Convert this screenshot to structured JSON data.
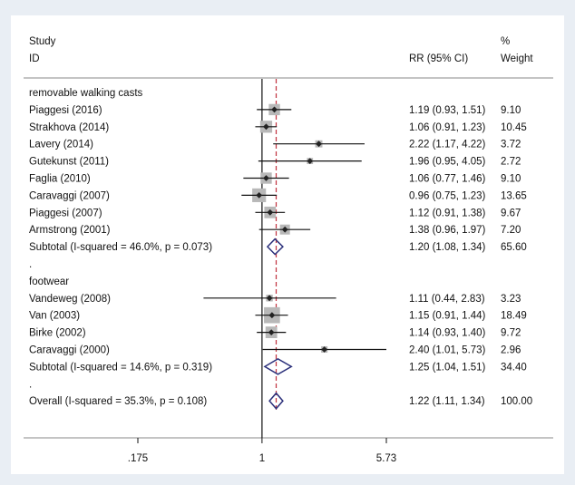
{
  "chart_data": {
    "type": "forest",
    "header": {
      "study_line1": "Study",
      "study_line2": "ID",
      "rr_label": "RR (95% CI)",
      "weight_line1": "%",
      "weight_line2": "Weight"
    },
    "axis": {
      "scale": "log",
      "ticks": [
        {
          "value": 0.175,
          "label": ".175"
        },
        {
          "value": 1,
          "label": "1"
        },
        {
          "value": 5.73,
          "label": "5.73"
        }
      ],
      "xlim": [
        0.175,
        5.73
      ],
      "null_line": 1,
      "overall_line": 1.22
    },
    "rows": [
      {
        "kind": "group",
        "label": "removable walking casts"
      },
      {
        "kind": "study",
        "label": "Piaggesi (2016)",
        "rr": 1.19,
        "lo": 0.93,
        "hi": 1.51,
        "ci_text": "1.19 (0.93, 1.51)",
        "weight": 9.1,
        "weight_text": "9.10"
      },
      {
        "kind": "study",
        "label": "Strakhova (2014)",
        "rr": 1.06,
        "lo": 0.91,
        "hi": 1.23,
        "ci_text": "1.06 (0.91, 1.23)",
        "weight": 10.45,
        "weight_text": "10.45"
      },
      {
        "kind": "study",
        "label": "Lavery (2014)",
        "rr": 2.22,
        "lo": 1.17,
        "hi": 4.22,
        "ci_text": "2.22 (1.17, 4.22)",
        "weight": 3.72,
        "weight_text": "3.72"
      },
      {
        "kind": "study",
        "label": "Gutekunst (2011)",
        "rr": 1.96,
        "lo": 0.95,
        "hi": 4.05,
        "ci_text": "1.96 (0.95, 4.05)",
        "weight": 2.72,
        "weight_text": "2.72"
      },
      {
        "kind": "study",
        "label": "Faglia (2010)",
        "rr": 1.06,
        "lo": 0.77,
        "hi": 1.46,
        "ci_text": "1.06 (0.77, 1.46)",
        "weight": 9.1,
        "weight_text": "9.10"
      },
      {
        "kind": "study",
        "label": "Caravaggi (2007)",
        "rr": 0.96,
        "lo": 0.75,
        "hi": 1.23,
        "ci_text": "0.96 (0.75, 1.23)",
        "weight": 13.65,
        "weight_text": "13.65"
      },
      {
        "kind": "study",
        "label": "Piaggesi (2007)",
        "rr": 1.12,
        "lo": 0.91,
        "hi": 1.38,
        "ci_text": "1.12 (0.91, 1.38)",
        "weight": 9.67,
        "weight_text": "9.67"
      },
      {
        "kind": "study",
        "label": "Armstrong (2001)",
        "rr": 1.38,
        "lo": 0.96,
        "hi": 1.97,
        "ci_text": "1.38 (0.96, 1.97)",
        "weight": 7.2,
        "weight_text": "7.20"
      },
      {
        "kind": "subtotal",
        "label": "Subtotal  (I-squared = 46.0%, p = 0.073)",
        "rr": 1.2,
        "lo": 1.08,
        "hi": 1.34,
        "ci_text": "1.20 (1.08, 1.34)",
        "weight": 65.6,
        "weight_text": "65.60"
      },
      {
        "kind": "spacer",
        "label": "."
      },
      {
        "kind": "group",
        "label": "footwear"
      },
      {
        "kind": "study",
        "label": "Vandeweg (2008)",
        "rr": 1.11,
        "lo": 0.44,
        "hi": 2.83,
        "ci_text": "1.11 (0.44, 2.83)",
        "weight": 3.23,
        "weight_text": "3.23"
      },
      {
        "kind": "study",
        "label": "Van (2003)",
        "rr": 1.15,
        "lo": 0.91,
        "hi": 1.44,
        "ci_text": "1.15 (0.91, 1.44)",
        "weight": 18.49,
        "weight_text": "18.49"
      },
      {
        "kind": "study",
        "label": "Birke (2002)",
        "rr": 1.14,
        "lo": 0.93,
        "hi": 1.4,
        "ci_text": "1.14 (0.93, 1.40)",
        "weight": 9.72,
        "weight_text": "9.72"
      },
      {
        "kind": "study",
        "label": "Caravaggi (2000)",
        "rr": 2.4,
        "lo": 1.01,
        "hi": 5.73,
        "ci_text": "2.40 (1.01, 5.73)",
        "weight": 2.96,
        "weight_text": "2.96"
      },
      {
        "kind": "subtotal",
        "label": "Subtotal  (I-squared = 14.6%, p = 0.319)",
        "rr": 1.25,
        "lo": 1.04,
        "hi": 1.51,
        "ci_text": "1.25 (1.04, 1.51)",
        "weight": 34.4,
        "weight_text": "34.40"
      },
      {
        "kind": "spacer",
        "label": "."
      },
      {
        "kind": "overall",
        "label": "Overall  (I-squared = 35.3%, p = 0.108)",
        "rr": 1.22,
        "lo": 1.11,
        "hi": 1.34,
        "ci_text": "1.22 (1.11, 1.34)",
        "weight": 100.0,
        "weight_text": "100.00"
      }
    ]
  },
  "colors": {
    "ci_line": "#111111",
    "weight_box": "#b8b8b8",
    "point": "#222222",
    "diamond": "#2a2f7a",
    "overall_line": "#c0303c",
    "axis": "#111111",
    "separator": "#888888"
  }
}
